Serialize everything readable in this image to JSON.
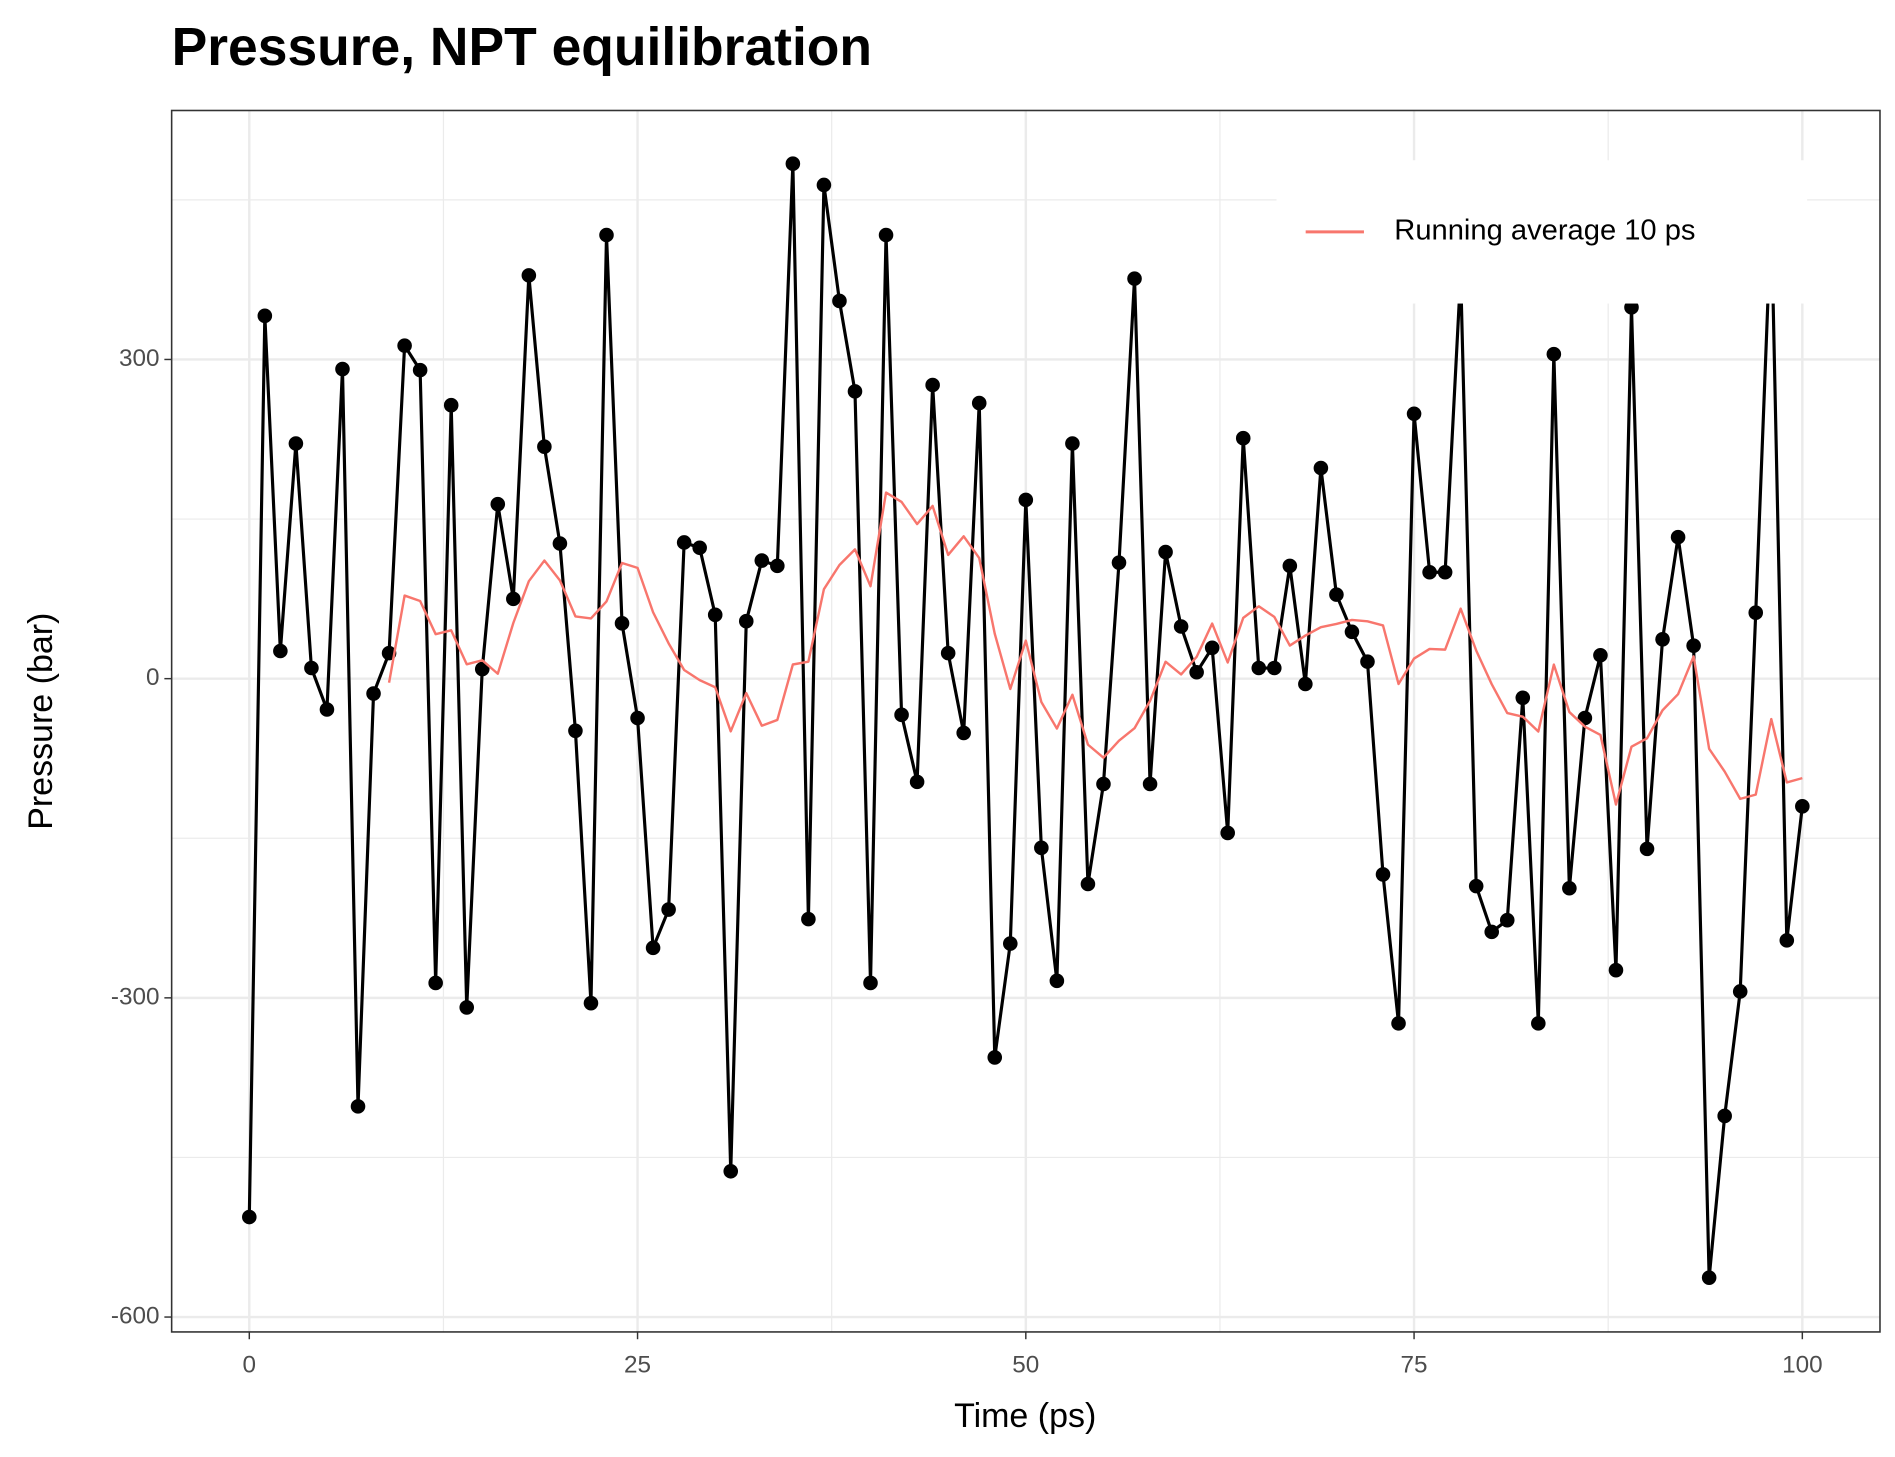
{
  "chart_data": {
    "type": "line",
    "title": "Pressure, NPT equilibration",
    "xlabel": "Time (ps)",
    "ylabel": "Pressure (bar)",
    "x": [
      0,
      1,
      2,
      3,
      4,
      5,
      6,
      7,
      8,
      9,
      10,
      11,
      12,
      13,
      14,
      15,
      16,
      17,
      18,
      19,
      20,
      21,
      22,
      23,
      24,
      25,
      26,
      27,
      28,
      29,
      30,
      31,
      32,
      33,
      34,
      35,
      36,
      37,
      38,
      39,
      40,
      41,
      42,
      43,
      44,
      45,
      46,
      47,
      48,
      49,
      50,
      51,
      52,
      53,
      54,
      55,
      56,
      57,
      58,
      59,
      60,
      61,
      62,
      63,
      64,
      65,
      66,
      67,
      68,
      69,
      70,
      71,
      72,
      73,
      74,
      75,
      76,
      77,
      78,
      79,
      80,
      81,
      82,
      83,
      84,
      85,
      86,
      87,
      88,
      89,
      90,
      91,
      92,
      93,
      94,
      95,
      96,
      97,
      98,
      99,
      100
    ],
    "series": [
      {
        "color": "#000000",
        "markers": true,
        "values": [
          -506,
          341,
          26,
          221,
          10,
          -29,
          291,
          -402,
          -14,
          24,
          313,
          290,
          -286,
          257,
          -309,
          9,
          164,
          75,
          379,
          218,
          127,
          -49,
          -305,
          417,
          52,
          -37,
          -253,
          -217,
          128,
          123,
          60,
          -463,
          54,
          111,
          106,
          484,
          -226,
          464,
          355,
          270,
          -286,
          417,
          -34,
          -97,
          276,
          24,
          -51,
          259,
          -356,
          -249,
          168,
          -159,
          -284,
          221,
          -193,
          -99,
          109,
          376,
          -99,
          119,
          49,
          6,
          29,
          -145,
          226,
          10,
          10,
          106,
          -5,
          198,
          79,
          44,
          16,
          -184,
          -324,
          249,
          100,
          100,
          380,
          -195,
          -238,
          -227,
          -18,
          -324,
          305,
          -197,
          -37,
          22,
          -274,
          349,
          -160,
          37,
          133,
          31,
          -563,
          -411,
          -294,
          62,
          436,
          -246,
          -120
        ]
      },
      {
        "name": "Running average 10 ps",
        "color": "#f8766d",
        "markers": false,
        "values": [
          null,
          null,
          null,
          null,
          null,
          null,
          null,
          null,
          null,
          -3.8,
          78.1,
          73,
          41.8,
          45.4,
          13.5,
          17.3,
          4.6,
          52.3,
          91.6,
          111,
          92.4,
          58.5,
          56.6,
          72.6,
          108.7,
          104.1,
          62.4,
          33.2,
          8.1,
          -1.4,
          -8.1,
          -49.5,
          -13.6,
          -44.2,
          -38.8,
          13.3,
          16,
          84.1,
          106.8,
          121.5,
          86.9,
          174.9,
          166.1,
          145.3,
          162.3,
          116.3,
          133.8,
          113.3,
          42.2,
          -9.7,
          35.7,
          -21.9,
          -46.9,
          -15.1,
          -62,
          -74.3,
          -58.3,
          -46.6,
          -20.9,
          15.9,
          4,
          20.5,
          51.8,
          15.2,
          57.1,
          68,
          58.1,
          31.1,
          40.5,
          48.4,
          51.4,
          55.2,
          53.9,
          50,
          -5,
          18.9,
          27.9,
          27.3,
          65.8,
          26.5,
          -5.2,
          -32.3,
          -35.7,
          -49.7,
          13.2,
          -31.4,
          -45.1,
          -52.9,
          -118.3,
          -63.9,
          -56.1,
          -29.7,
          -14.6,
          20.9,
          -65.9,
          -87.3,
          -113,
          -109,
          -38,
          -97.5,
          -93.5
        ]
      }
    ],
    "xlim": [
      -5,
      105
    ],
    "ylim": [
      -614,
      534
    ],
    "xticks": [
      0,
      25,
      50,
      75,
      100
    ],
    "yticks": [
      -600,
      -300,
      0,
      300
    ],
    "x_minor_ticks": [
      12.5,
      37.5,
      62.5,
      87.5
    ],
    "y_minor_ticks": [
      -450,
      -150,
      150,
      450
    ],
    "grid": true,
    "legend_position": "top-right"
  }
}
